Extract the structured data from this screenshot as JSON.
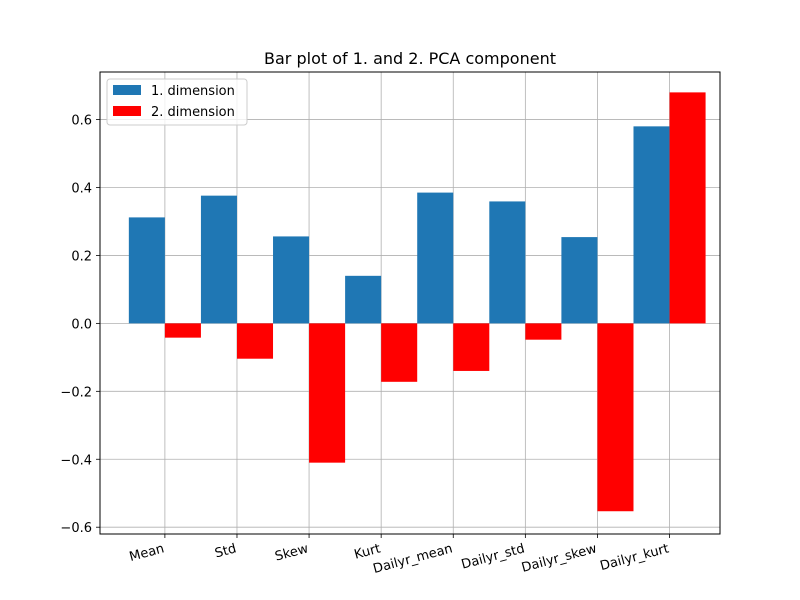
{
  "chart_data": {
    "type": "bar",
    "title": "Bar plot of 1. and 2. PCA component",
    "xlabel": "",
    "ylabel": "",
    "categories": [
      "Mean",
      "Std",
      "Skew",
      "Kurt",
      "Dailyr_mean",
      "Dailyr_std",
      "Dailyr_skew",
      "Dailyr_kurt"
    ],
    "series": [
      {
        "name": "1. dimension",
        "color": "#1f77b4",
        "values": [
          0.312,
          0.376,
          0.256,
          0.14,
          0.385,
          0.359,
          0.254,
          0.58
        ]
      },
      {
        "name": "2. dimension",
        "color": "#ff0000",
        "values": [
          -0.042,
          -0.104,
          -0.41,
          -0.172,
          -0.14,
          -0.048,
          -0.553,
          0.68
        ]
      }
    ],
    "ylim": [
      -0.62,
      0.74
    ],
    "yticks": [
      -0.6,
      -0.4,
      -0.2,
      0.0,
      0.2,
      0.4,
      0.6
    ],
    "ytick_labels": [
      "−0.6",
      "−0.4",
      "−0.2",
      "0.0",
      "0.2",
      "0.4",
      "0.6"
    ],
    "grid": true,
    "legend_position": "upper-left",
    "xtick_rotation_deg": -15
  }
}
